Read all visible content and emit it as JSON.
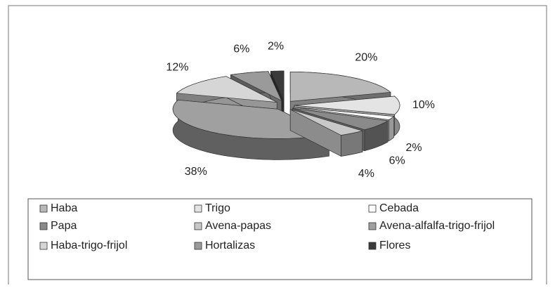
{
  "chart_data": {
    "type": "pie",
    "categories": [
      "Haba",
      "Trigo",
      "Cebada",
      "Papa",
      "Avena-papas",
      "Avena-alfalfa-trigo-frijol",
      "Haba-trigo-frijol",
      "Hortalizas",
      "Flores"
    ],
    "values": [
      20,
      10,
      2,
      6,
      4,
      38,
      12,
      6,
      2
    ],
    "value_labels": [
      "20%",
      "10%",
      "2%",
      "6%",
      "4%",
      "38%",
      "12%",
      "6%",
      "2%"
    ],
    "colors": [
      "#b8b8b8",
      "#e4e4e4",
      "#ffffff",
      "#8a8a8a",
      "#c8c8c8",
      "#a0a0a0",
      "#d6d6d6",
      "#9a9a9a",
      "#3a3a3a"
    ],
    "legend": "bottom"
  }
}
